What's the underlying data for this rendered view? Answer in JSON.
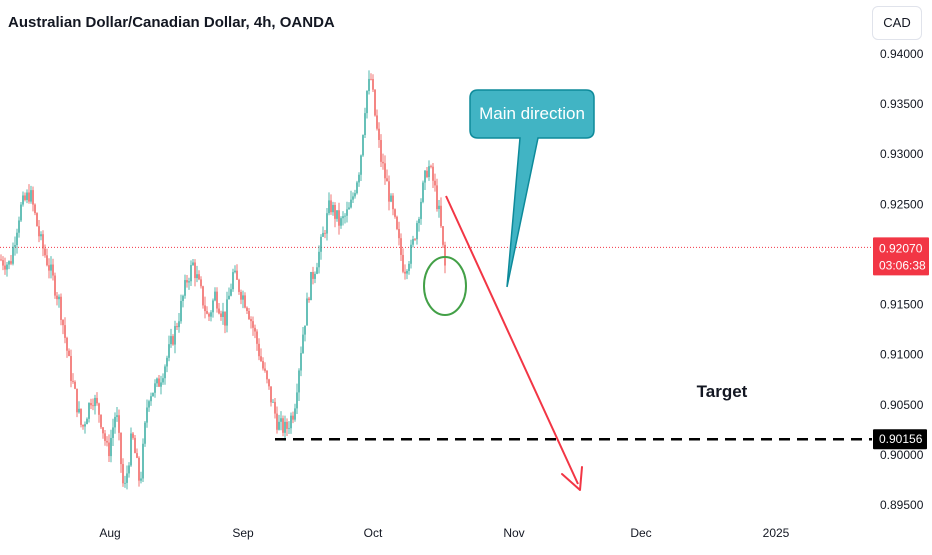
{
  "header": {
    "title": "Australian Dollar/Canadian Dollar, 4h, OANDA",
    "currency_button": "CAD"
  },
  "annotations": {
    "callout_text": "Main direction",
    "target_label": "Target"
  },
  "colors": {
    "up": "#26a69a",
    "down": "#ef5350",
    "arrow": "#f23645",
    "callout_fill": "#41b4c4",
    "callout_border": "#0d8a9a",
    "circle": "#43a047",
    "current_price_bg": "#f23645",
    "target_line": "#000000"
  },
  "chart_data": {
    "type": "candlestick",
    "symbol": "AUDCAD",
    "timeframe": "4h",
    "x_tick_labels": [
      "Aug",
      "Sep",
      "Oct",
      "Nov",
      "Dec",
      "2025"
    ],
    "y_tick_labels": [
      "0.89500",
      "0.90000",
      "0.90500",
      "0.91000",
      "0.91500",
      "0.92000",
      "0.92500",
      "0.93000",
      "0.93500",
      "0.94000"
    ],
    "ylim": [
      0.8935,
      0.9408
    ],
    "current_price": "0.92070",
    "countdown": "03:06:38",
    "target_price": "0.90156",
    "grid": false,
    "path_anchors": [
      [
        0,
        0.9195
      ],
      [
        10,
        0.919
      ],
      [
        20,
        0.9245
      ],
      [
        30,
        0.9262
      ],
      [
        40,
        0.9215
      ],
      [
        50,
        0.9185
      ],
      [
        60,
        0.915
      ],
      [
        70,
        0.9085
      ],
      [
        82,
        0.9025
      ],
      [
        92,
        0.906
      ],
      [
        100,
        0.904
      ],
      [
        108,
        0.9
      ],
      [
        116,
        0.9045
      ],
      [
        124,
        0.896
      ],
      [
        132,
        0.902
      ],
      [
        140,
        0.897
      ],
      [
        148,
        0.906
      ],
      [
        158,
        0.907
      ],
      [
        168,
        0.91
      ],
      [
        178,
        0.9135
      ],
      [
        187,
        0.9175
      ],
      [
        193,
        0.919
      ],
      [
        200,
        0.9165
      ],
      [
        208,
        0.9135
      ],
      [
        215,
        0.916
      ],
      [
        225,
        0.9135
      ],
      [
        233,
        0.918
      ],
      [
        240,
        0.9165
      ],
      [
        247,
        0.915
      ],
      [
        255,
        0.912
      ],
      [
        262,
        0.909
      ],
      [
        270,
        0.906
      ],
      [
        278,
        0.903
      ],
      [
        286,
        0.9025
      ],
      [
        294,
        0.9045
      ],
      [
        302,
        0.9115
      ],
      [
        310,
        0.917
      ],
      [
        320,
        0.9205
      ],
      [
        330,
        0.925
      ],
      [
        340,
        0.923
      ],
      [
        350,
        0.9245
      ],
      [
        360,
        0.929
      ],
      [
        366,
        0.936
      ],
      [
        371,
        0.9375
      ],
      [
        376,
        0.933
      ],
      [
        381,
        0.9295
      ],
      [
        388,
        0.9265
      ],
      [
        396,
        0.9225
      ],
      [
        404,
        0.9185
      ],
      [
        412,
        0.9205
      ],
      [
        420,
        0.925
      ],
      [
        428,
        0.929
      ],
      [
        434,
        0.927
      ],
      [
        440,
        0.9235
      ],
      [
        444,
        0.9195
      ],
      [
        446,
        0.918
      ]
    ]
  }
}
